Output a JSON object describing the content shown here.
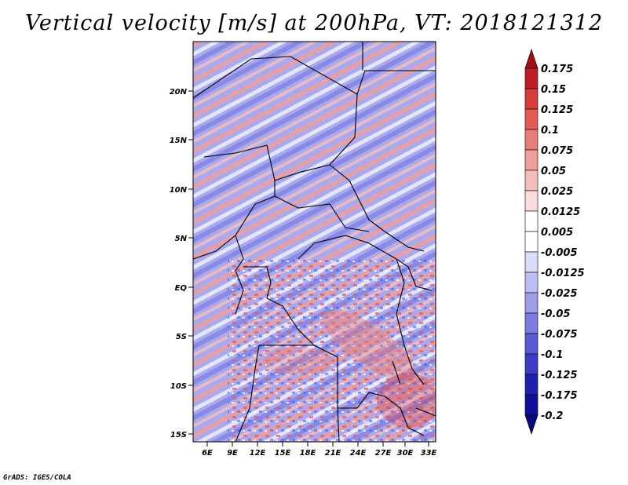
{
  "title": "Vertical velocity [m/s] at 200hPa, VT: 2018121312",
  "credit": "GrADS: IGES/COLA",
  "map": {
    "lat_labels": [
      "20N",
      "15N",
      "10N",
      "5N",
      "EQ",
      "5S",
      "10S",
      "15S"
    ],
    "lon_labels": [
      "6E",
      "9E",
      "12E",
      "15E",
      "18E",
      "21E",
      "24E",
      "27E",
      "30E",
      "33E"
    ]
  },
  "colorbar": {
    "labels": [
      "0.175",
      "0.15",
      "0.125",
      "0.1",
      "0.075",
      "0.05",
      "0.025",
      "0.0125",
      "0.005",
      "-0.005",
      "-0.0125",
      "-0.025",
      "-0.05",
      "-0.075",
      "-0.1",
      "-0.125",
      "-0.175",
      "-0.2"
    ],
    "colors": [
      "#9e1216",
      "#bd1e25",
      "#d93b3b",
      "#e35a55",
      "#e77c78",
      "#ef9e9b",
      "#f5bebc",
      "#fadcdb",
      "#ffffff",
      "#ffffff",
      "#dcdcfa",
      "#bdbdf5",
      "#9d9deb",
      "#7c7ce3",
      "#5a5ad6",
      "#3b3bc7",
      "#2020b0",
      "#10109a",
      "#080880"
    ]
  }
}
